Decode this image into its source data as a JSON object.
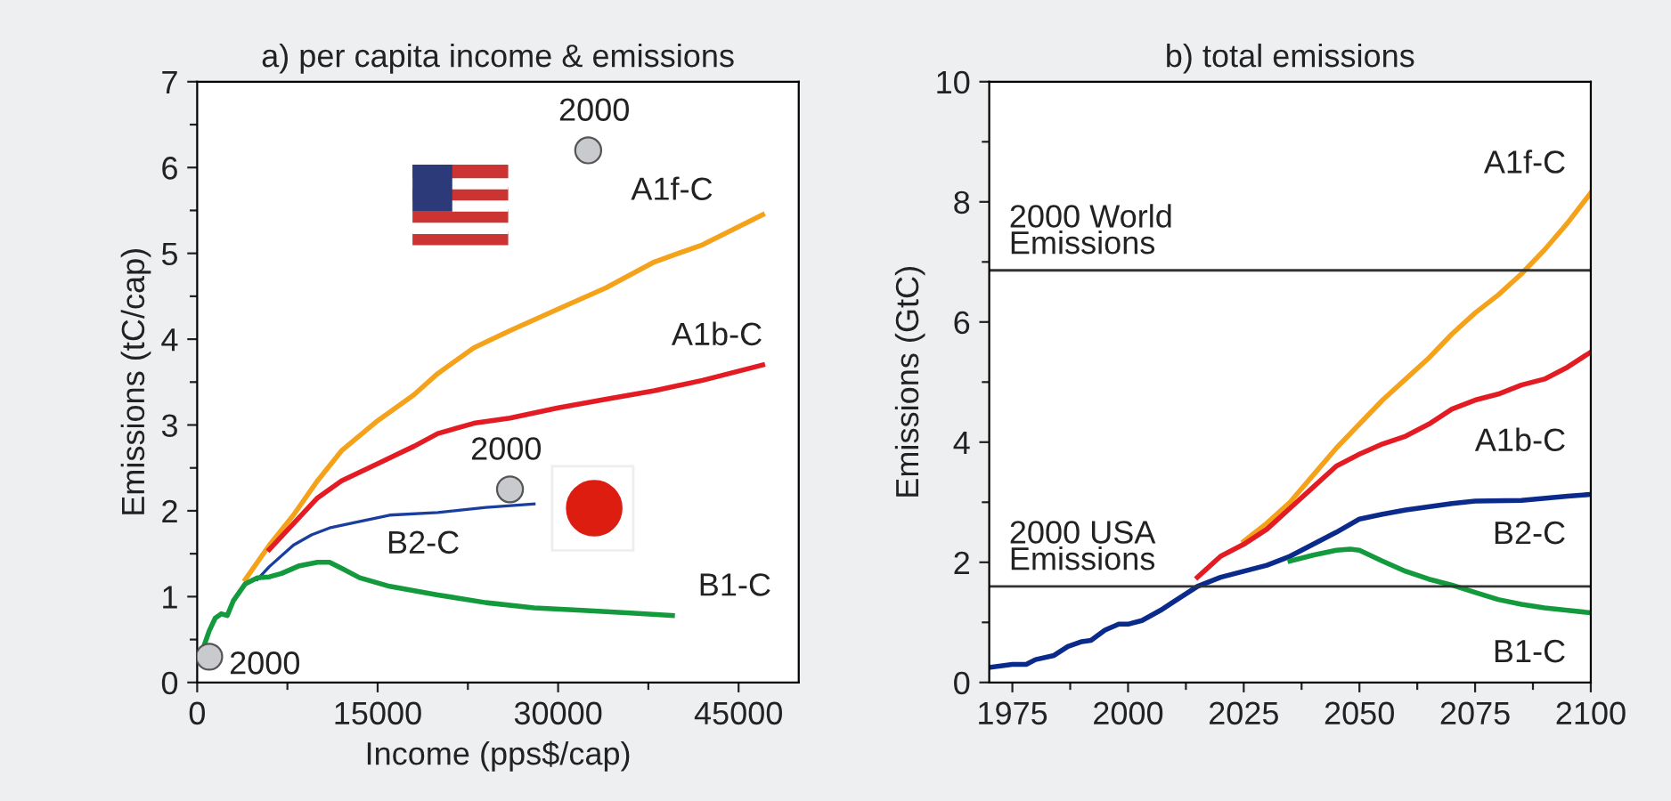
{
  "chart_data": [
    {
      "type": "line",
      "title": "a) per capita income & emissions",
      "xlabel": "Income (pps$/cap)",
      "ylabel": "Emissions (tC/cap)",
      "xlim": [
        0,
        50000
      ],
      "ylim": [
        0,
        7
      ],
      "xticks": [
        0,
        {
          "value": 7500,
          "label": null
        },
        15000,
        {
          "value": 22500,
          "label": null
        },
        30000,
        {
          "value": 37500,
          "label": null
        },
        45000
      ],
      "yticks": [
        0,
        {
          "value": 0.5,
          "label": null
        },
        1,
        {
          "value": 1.5,
          "label": null
        },
        2,
        {
          "value": 2.5,
          "label": null
        },
        3,
        {
          "value": 3.5,
          "label": null
        },
        4,
        {
          "value": 4.5,
          "label": null
        },
        5,
        {
          "value": 5.5,
          "label": null
        },
        6,
        {
          "value": 6.5,
          "label": null
        },
        7
      ],
      "grid": false,
      "legend": false,
      "series": [
        {
          "name": "A1f-C",
          "color": "#f5a21b",
          "x": [
            4000,
            5000,
            6000,
            8000,
            10000,
            12000,
            15000,
            18000,
            20000,
            23000,
            26000,
            30000,
            34000,
            38000,
            42000,
            47000
          ],
          "values": [
            1.2,
            1.4,
            1.6,
            1.95,
            2.35,
            2.7,
            3.05,
            3.35,
            3.6,
            3.9,
            4.1,
            4.35,
            4.6,
            4.9,
            5.1,
            5.45
          ]
        },
        {
          "name": "A1b-C",
          "color": "#e31b23",
          "x": [
            6000,
            8000,
            10000,
            12000,
            15000,
            18000,
            20000,
            23000,
            26000,
            30000,
            34000,
            38000,
            42000,
            47000
          ],
          "values": [
            1.55,
            1.85,
            2.15,
            2.35,
            2.55,
            2.75,
            2.9,
            3.02,
            3.08,
            3.2,
            3.3,
            3.4,
            3.52,
            3.7
          ]
        },
        {
          "name": "B2-C",
          "color": "#1a3ea0",
          "x": [
            5000,
            6000,
            8000,
            9500,
            11000,
            13000,
            16000,
            20000,
            24000,
            28000
          ],
          "values": [
            1.2,
            1.35,
            1.6,
            1.72,
            1.8,
            1.86,
            1.95,
            1.98,
            2.04,
            2.08
          ]
        },
        {
          "name": "B1-C",
          "color": "#129a3c",
          "x": [
            500,
            1000,
            1500,
            2000,
            2500,
            3000,
            4000,
            5000,
            6000,
            7000,
            8500,
            10000,
            11000,
            12000,
            13500,
            16000,
            20000,
            24000,
            28000,
            32000,
            36000,
            39500
          ],
          "values": [
            0.4,
            0.6,
            0.75,
            0.8,
            0.78,
            0.95,
            1.15,
            1.22,
            1.23,
            1.27,
            1.36,
            1.4,
            1.4,
            1.33,
            1.22,
            1.12,
            1.02,
            0.93,
            0.87,
            0.84,
            0.81,
            0.78
          ]
        },
        {
          "type": "scatter",
          "color": "#c8cacd",
          "x": [
            1000,
            26000,
            32500
          ],
          "values": [
            0.3,
            2.25,
            6.2
          ]
        }
      ],
      "annotations": [
        {
          "text": "2000",
          "x": 1000,
          "y": 0.3
        },
        {
          "text": "2000",
          "x": 26000,
          "y": 2.25
        },
        {
          "text": "2000",
          "x": 32500,
          "y": 6.2
        }
      ]
    },
    {
      "type": "line",
      "title": "b) total emissions",
      "ylabel": "Emissions (GtC)",
      "xlim": [
        1970,
        2100
      ],
      "ylim": [
        0,
        10
      ],
      "xticks": [
        1975,
        {
          "value": 1987.5,
          "label": null
        },
        2000,
        {
          "value": 2012.5,
          "label": null
        },
        2025,
        {
          "value": 2037.5,
          "label": null
        },
        2050,
        {
          "value": 2062.5,
          "label": null
        },
        2075,
        {
          "value": 2087.5,
          "label": null
        },
        2100
      ],
      "yticks": [
        0,
        {
          "value": 1,
          "label": null
        },
        2,
        {
          "value": 3,
          "label": null
        },
        4,
        {
          "value": 5,
          "label": null
        },
        6,
        {
          "value": 7,
          "label": null
        },
        8,
        {
          "value": 9,
          "label": null
        },
        10
      ],
      "grid": false,
      "legend": false,
      "ref_lines": [
        {
          "axis": "y",
          "value": 6.86,
          "label": "2000 World\nEmissions",
          "color": "#333333"
        },
        {
          "axis": "y",
          "value": 1.6,
          "label": "2000 USA\nEmissions",
          "color": "#333333"
        }
      ],
      "series": [
        {
          "name": "A1f-C",
          "color": "#f5a21b",
          "x": [
            2025,
            2030,
            2035,
            2040,
            2045,
            2050,
            2055,
            2060,
            2065,
            2070,
            2075,
            2080,
            2085,
            2090,
            2095,
            2100
          ],
          "values": [
            2.35,
            2.65,
            3.0,
            3.45,
            3.9,
            4.3,
            4.7,
            5.05,
            5.4,
            5.8,
            6.15,
            6.45,
            6.8,
            7.2,
            7.65,
            8.15
          ]
        },
        {
          "name": "A1b-C",
          "color": "#e31b23",
          "x": [
            2015,
            2020,
            2025,
            2030,
            2035,
            2040,
            2045,
            2050,
            2055,
            2060,
            2065,
            2070,
            2075,
            2080,
            2085,
            2090,
            2095,
            2100
          ],
          "values": [
            1.75,
            2.1,
            2.3,
            2.55,
            2.9,
            3.25,
            3.6,
            3.8,
            3.97,
            4.1,
            4.3,
            4.55,
            4.7,
            4.8,
            4.95,
            5.05,
            5.25,
            5.5
          ]
        },
        {
          "name": "B2-C",
          "color": "#0a2a8c",
          "x": [
            1970,
            1975,
            1978,
            1980,
            1984,
            1987,
            1990,
            1992,
            1995,
            1998,
            2000,
            2003,
            2007,
            2010,
            2015,
            2020,
            2025,
            2030,
            2035,
            2040,
            2045,
            2050,
            2055,
            2060,
            2070,
            2075,
            2085,
            2095,
            2100
          ],
          "values": [
            0.25,
            0.3,
            0.3,
            0.38,
            0.45,
            0.6,
            0.68,
            0.7,
            0.87,
            0.97,
            0.97,
            1.03,
            1.2,
            1.35,
            1.6,
            1.75,
            1.85,
            1.95,
            2.1,
            2.3,
            2.5,
            2.72,
            2.8,
            2.87,
            2.98,
            3.02,
            3.03,
            3.1,
            3.13
          ]
        },
        {
          "name": "B1-C",
          "color": "#129a3c",
          "x": [
            2035,
            2040,
            2045,
            2048,
            2050,
            2055,
            2060,
            2065,
            2070,
            2075,
            2080,
            2085,
            2090,
            2095,
            2100
          ],
          "values": [
            2.02,
            2.12,
            2.2,
            2.22,
            2.2,
            2.02,
            1.85,
            1.72,
            1.62,
            1.5,
            1.38,
            1.3,
            1.24,
            1.2,
            1.16
          ]
        }
      ]
    }
  ]
}
